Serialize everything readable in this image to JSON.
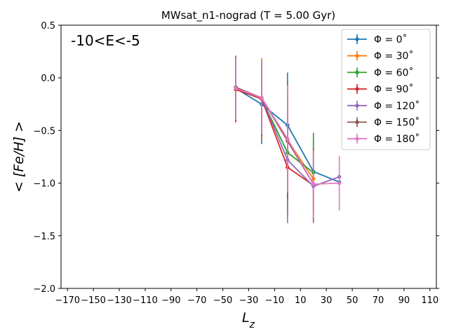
{
  "chart_data": {
    "type": "line",
    "title": "MWsat_n1-nograd (T = 5.00 Gyr)",
    "annotation": "-10<E<-5",
    "xlabel": "L_z",
    "ylabel": "< [Fe/H] >",
    "xlim": [
      -175,
      115
    ],
    "ylim": [
      -2.0,
      0.5
    ],
    "xticks": [
      -170,
      -150,
      -130,
      -110,
      -90,
      -70,
      -50,
      -30,
      -10,
      10,
      30,
      50,
      70,
      90,
      110
    ],
    "yticks": [
      -2.0,
      -1.5,
      -1.0,
      -0.5,
      0.0,
      0.5
    ],
    "grid": false,
    "legend_position": "top-right",
    "series": [
      {
        "name": "Φ = 0˚",
        "color": "#1f77b4",
        "x": [
          -40,
          -20,
          0,
          20,
          40
        ],
        "y": [
          -0.1,
          -0.25,
          -0.45,
          -0.89,
          -0.99
        ],
        "yerr": [
          0.3,
          0.38,
          0.5,
          0.3,
          0
        ]
      },
      {
        "name": "Φ = 30˚",
        "color": "#ff7f0e",
        "x": [
          -40,
          -20,
          0,
          20
        ],
        "y": [
          -0.11,
          -0.19,
          -0.59,
          -0.96
        ],
        "yerr": [
          0.31,
          0.38,
          0.5,
          0.3
        ]
      },
      {
        "name": "Φ = 60˚",
        "color": "#2ca02c",
        "x": [
          -40,
          -20,
          0,
          20
        ],
        "y": [
          -0.11,
          -0.2,
          -0.71,
          -0.9
        ],
        "yerr": [
          0.31,
          0.36,
          0.55,
          0.38
        ]
      },
      {
        "name": "Φ = 90˚",
        "color": "#d62728",
        "x": [
          -40,
          -20,
          0,
          20
        ],
        "y": [
          -0.11,
          -0.2,
          -0.85,
          -1.02
        ],
        "yerr": [
          0.31,
          0.36,
          0.45,
          0.35
        ]
      },
      {
        "name": "Φ = 120˚",
        "color": "#9467bd",
        "x": [
          -40,
          -20,
          0,
          20,
          40
        ],
        "y": [
          -0.09,
          -0.19,
          -0.78,
          -1.03,
          -0.94
        ],
        "yerr": [
          0.3,
          0.35,
          0.6,
          0.35,
          0
        ]
      },
      {
        "name": "Φ = 150˚",
        "color": "#8c564b",
        "x": [
          -40,
          -20,
          0,
          20
        ],
        "y": [
          -0.09,
          -0.19,
          -0.6,
          -1.01
        ],
        "yerr": [
          0.3,
          0.35,
          0.55,
          0.33
        ]
      },
      {
        "name": "Φ = 180˚",
        "color": "#e377c2",
        "x": [
          -40,
          -20,
          0,
          20,
          40
        ],
        "y": [
          -0.1,
          -0.19,
          -0.58,
          -1.01,
          -1.0
        ],
        "yerr": [
          0.3,
          0.35,
          0.51,
          0.32,
          0.26
        ]
      }
    ]
  }
}
